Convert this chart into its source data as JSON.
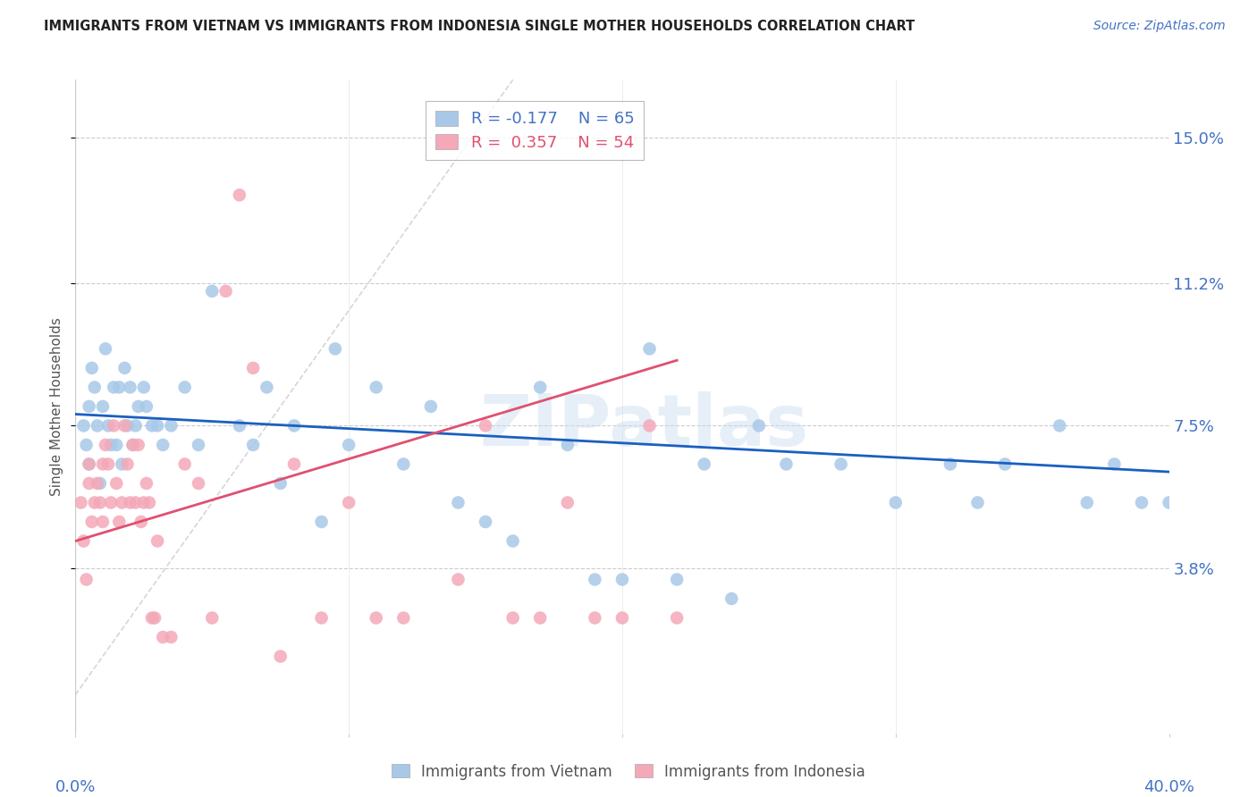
{
  "title": "IMMIGRANTS FROM VIETNAM VS IMMIGRANTS FROM INDONESIA SINGLE MOTHER HOUSEHOLDS CORRELATION CHART",
  "source": "Source: ZipAtlas.com",
  "ylabel": "Single Mother Households",
  "ytick_labels": [
    "3.8%",
    "7.5%",
    "11.2%",
    "15.0%"
  ],
  "ytick_values": [
    3.8,
    7.5,
    11.2,
    15.0
  ],
  "xlim": [
    0.0,
    40.0
  ],
  "ylim": [
    -0.5,
    16.5
  ],
  "watermark": "ZIPatlas",
  "color_vietnam": "#A8C8E8",
  "color_indonesia": "#F4A8B8",
  "trend_vietnam_color": "#1B5FC0",
  "trend_indonesia_color": "#E05070",
  "trend_diagonal_color": "#CCCCCC",
  "background_color": "#FFFFFF",
  "title_color": "#222222",
  "axis_label_color": "#4472C4",
  "grid_color": "#CCCCCC",
  "vietnam_x": [
    0.3,
    0.4,
    0.5,
    0.5,
    0.6,
    0.7,
    0.8,
    0.9,
    1.0,
    1.1,
    1.2,
    1.3,
    1.4,
    1.5,
    1.6,
    1.7,
    1.8,
    1.9,
    2.0,
    2.1,
    2.2,
    2.3,
    2.5,
    2.6,
    2.8,
    3.0,
    3.2,
    3.5,
    4.0,
    4.5,
    5.0,
    6.0,
    6.5,
    7.0,
    7.5,
    8.0,
    9.0,
    9.5,
    10.0,
    11.0,
    12.0,
    13.0,
    14.0,
    15.0,
    16.0,
    17.0,
    18.0,
    19.0,
    20.0,
    21.0,
    22.0,
    23.0,
    24.0,
    25.0,
    26.0,
    28.0,
    30.0,
    32.0,
    33.0,
    34.0,
    36.0,
    37.0,
    38.0,
    39.0,
    40.0
  ],
  "vietnam_y": [
    7.5,
    7.0,
    8.0,
    6.5,
    9.0,
    8.5,
    7.5,
    6.0,
    8.0,
    9.5,
    7.5,
    7.0,
    8.5,
    7.0,
    8.5,
    6.5,
    9.0,
    7.5,
    8.5,
    7.0,
    7.5,
    8.0,
    8.5,
    8.0,
    7.5,
    7.5,
    7.0,
    7.5,
    8.5,
    7.0,
    11.0,
    7.5,
    7.0,
    8.5,
    6.0,
    7.5,
    5.0,
    9.5,
    7.0,
    8.5,
    6.5,
    8.0,
    5.5,
    5.0,
    4.5,
    8.5,
    7.0,
    3.5,
    3.5,
    9.5,
    3.5,
    6.5,
    3.0,
    7.5,
    6.5,
    6.5,
    5.5,
    6.5,
    5.5,
    6.5,
    7.5,
    5.5,
    6.5,
    5.5,
    5.5
  ],
  "indonesia_x": [
    0.2,
    0.3,
    0.4,
    0.5,
    0.5,
    0.6,
    0.7,
    0.8,
    0.9,
    1.0,
    1.0,
    1.1,
    1.2,
    1.3,
    1.4,
    1.5,
    1.6,
    1.7,
    1.8,
    1.9,
    2.0,
    2.1,
    2.2,
    2.3,
    2.4,
    2.5,
    2.6,
    2.7,
    2.8,
    2.9,
    3.0,
    3.2,
    3.5,
    4.0,
    4.5,
    5.0,
    5.5,
    6.0,
    6.5,
    7.5,
    8.0,
    9.0,
    10.0,
    11.0,
    12.0,
    14.0,
    15.0,
    16.0,
    17.0,
    18.0,
    19.0,
    20.0,
    21.0,
    22.0
  ],
  "indonesia_y": [
    5.5,
    4.5,
    3.5,
    6.5,
    6.0,
    5.0,
    5.5,
    6.0,
    5.5,
    6.5,
    5.0,
    7.0,
    6.5,
    5.5,
    7.5,
    6.0,
    5.0,
    5.5,
    7.5,
    6.5,
    5.5,
    7.0,
    5.5,
    7.0,
    5.0,
    5.5,
    6.0,
    5.5,
    2.5,
    2.5,
    4.5,
    2.0,
    2.0,
    6.5,
    6.0,
    2.5,
    11.0,
    13.5,
    9.0,
    1.5,
    6.5,
    2.5,
    5.5,
    2.5,
    2.5,
    3.5,
    7.5,
    2.5,
    2.5,
    5.5,
    2.5,
    2.5,
    7.5,
    2.5
  ],
  "trend_viet_x0": 0.0,
  "trend_viet_x1": 40.0,
  "trend_viet_y0": 7.8,
  "trend_viet_y1": 6.3,
  "trend_indo_x0": 0.0,
  "trend_indo_x1": 22.0,
  "trend_indo_y0": 4.5,
  "trend_indo_y1": 9.2,
  "diag_x0": 0.0,
  "diag_x1": 16.0,
  "diag_y0": 0.5,
  "diag_y1": 16.5
}
